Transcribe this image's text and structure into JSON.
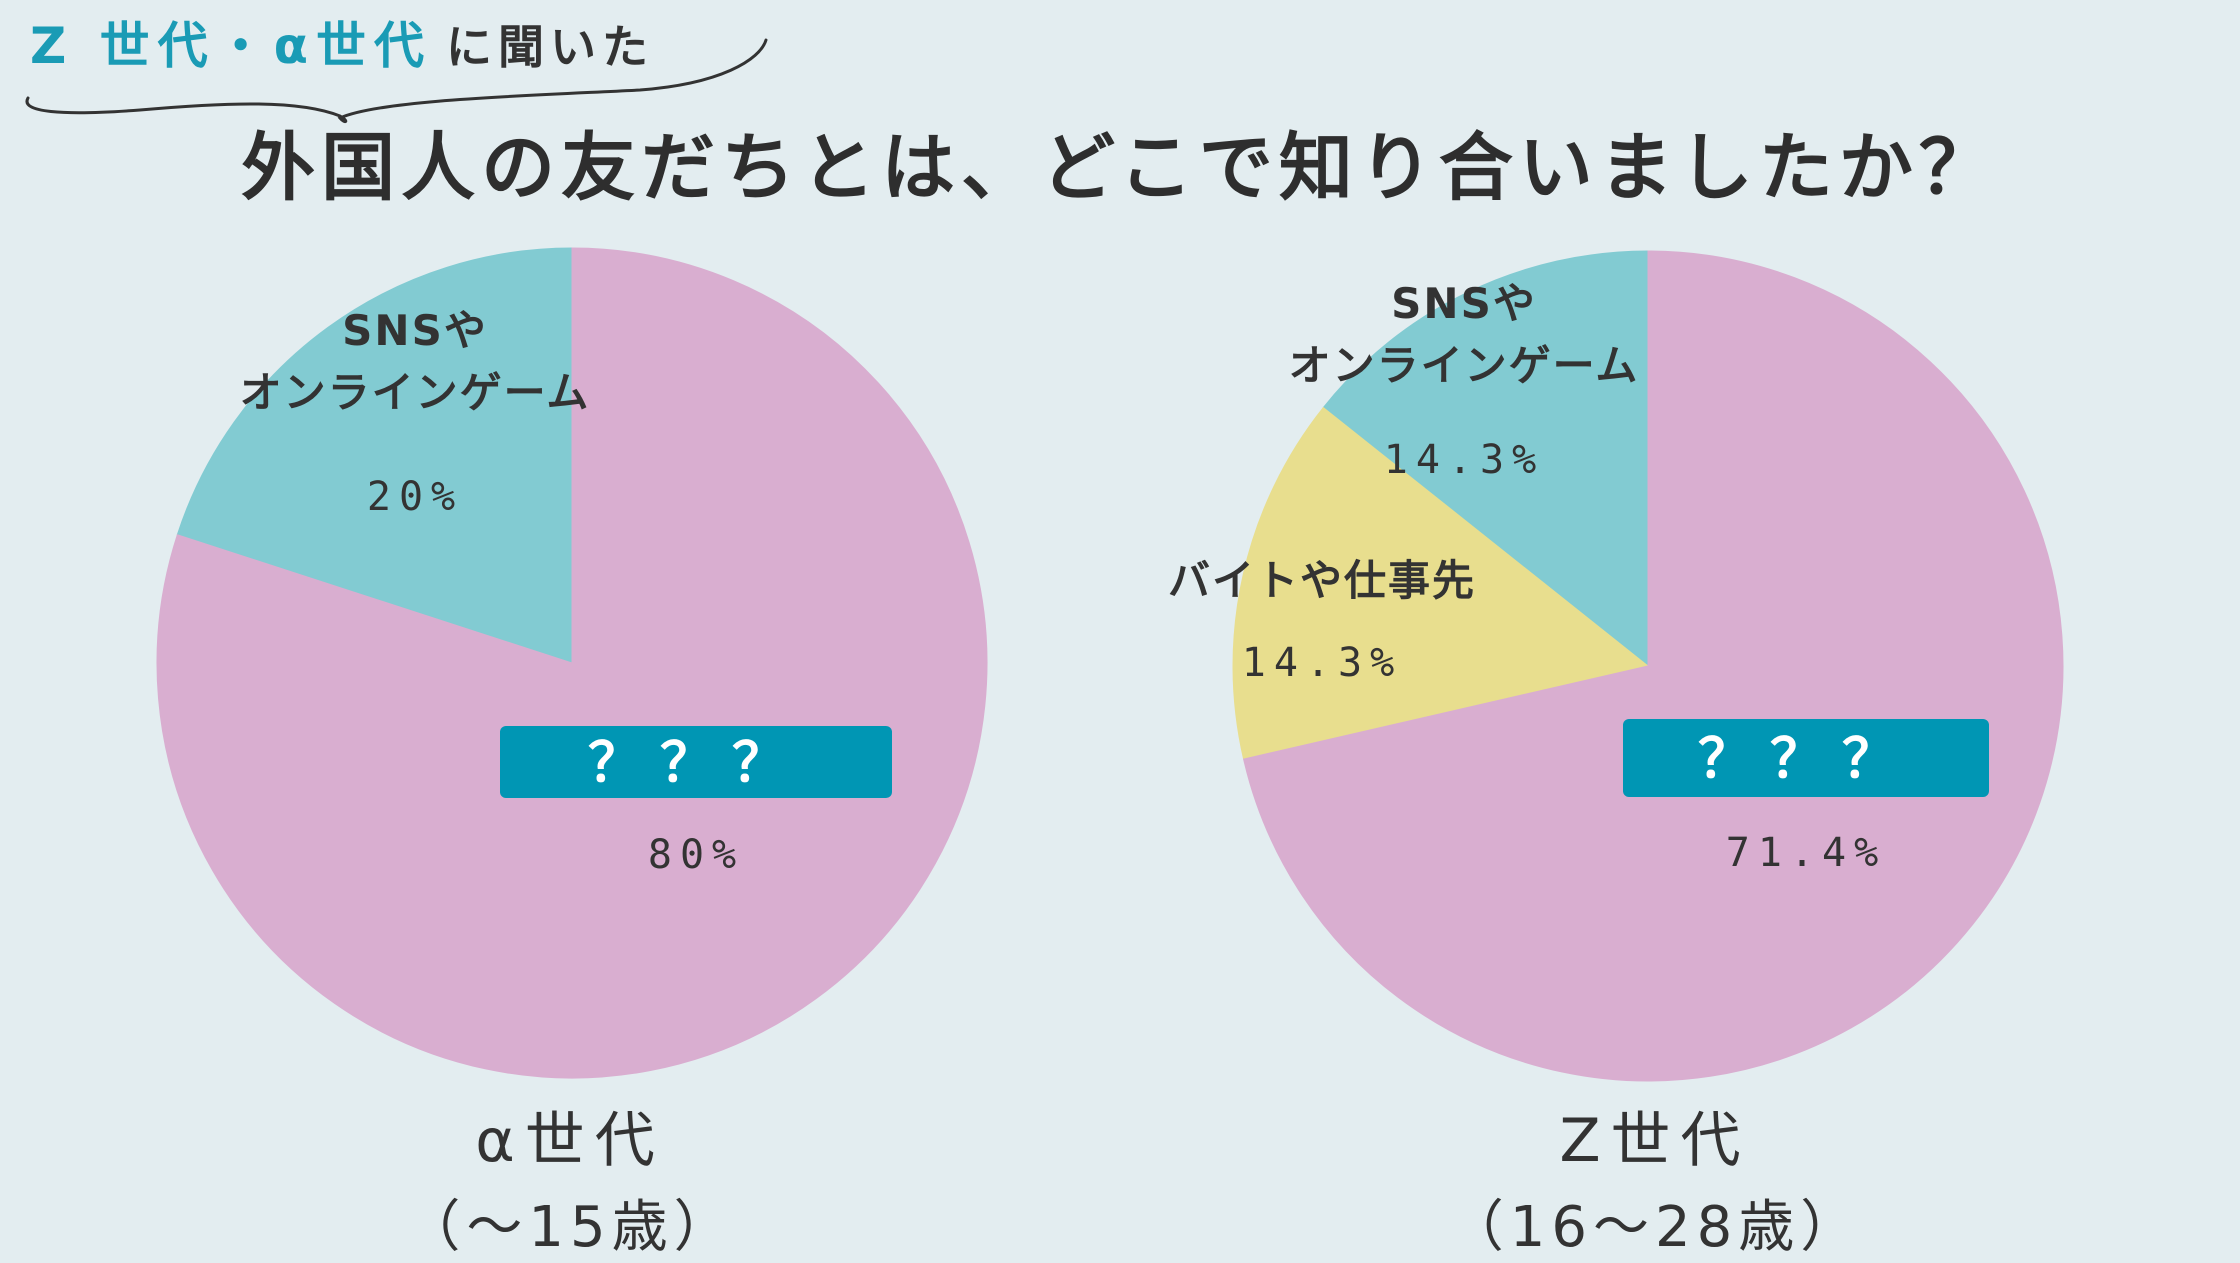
{
  "header": {
    "subtitle_accent": "Z 世代・α世代",
    "subtitle_rest": "に聞いた",
    "title": "外国人の友だちとは、どこで知り合いましたか？"
  },
  "colors": {
    "background": "#e3edf0",
    "pink": "#d9aed0",
    "teal": "#82cbd2",
    "yellow": "#e8de8e",
    "label_box": "#0096b4",
    "accent_text": "#1a9bb5"
  },
  "chart_data": [
    {
      "type": "pie",
      "group_label": "α世代",
      "group_range": "（～15歳）",
      "slices": [
        {
          "label_lines": [
            "SNSや",
            "オンラインゲーム"
          ],
          "value": 20,
          "value_text": "20%",
          "color": "teal",
          "boxed": false
        },
        {
          "label_lines": [
            "？？？"
          ],
          "value": 80,
          "value_text": "80%",
          "color": "pink",
          "boxed": true
        }
      ]
    },
    {
      "type": "pie",
      "group_label": "Z世代",
      "group_range": "（16～28歳）",
      "slices": [
        {
          "label_lines": [
            "SNSや",
            "オンラインゲーム"
          ],
          "value": 14.3,
          "value_text": "14.3%",
          "color": "teal",
          "boxed": false
        },
        {
          "label_lines": [
            "バイトや仕事先"
          ],
          "value": 14.3,
          "value_text": "14.3%",
          "color": "yellow",
          "boxed": false
        },
        {
          "label_lines": [
            "？？？"
          ],
          "value": 71.4,
          "value_text": "71.4%",
          "color": "pink",
          "boxed": true
        }
      ]
    }
  ]
}
